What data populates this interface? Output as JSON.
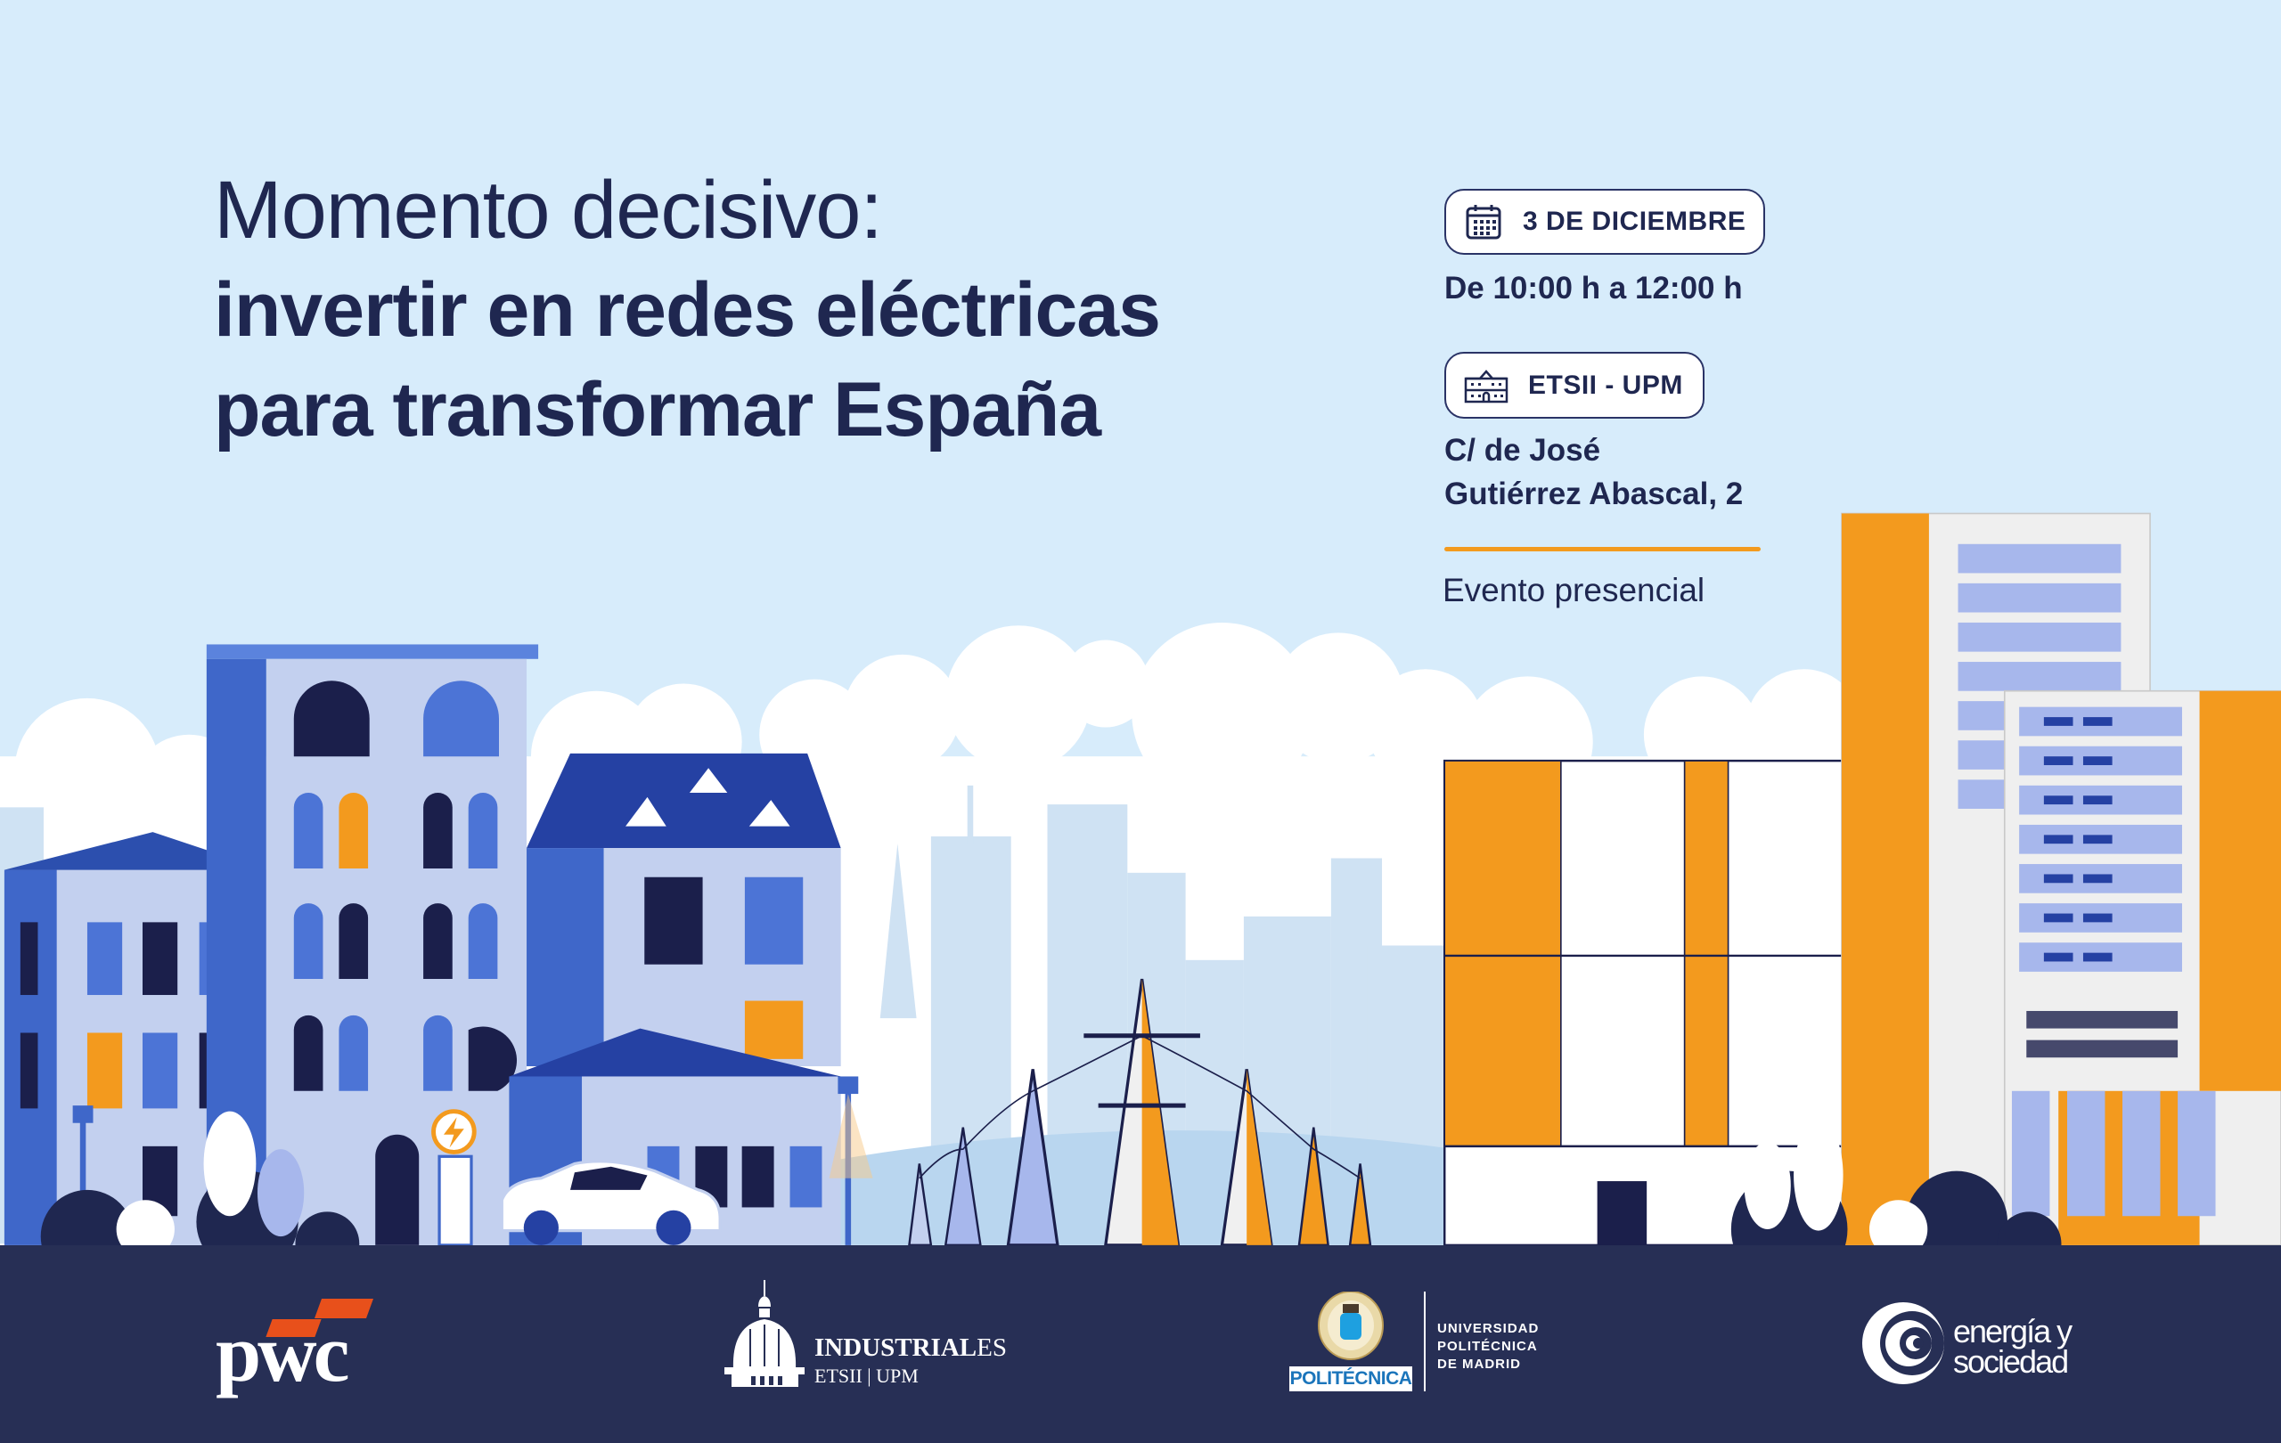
{
  "headline": {
    "line1": "Momento decisivo:",
    "line2": "invertir en redes eléctricas",
    "line3": "para transformar España"
  },
  "event": {
    "date_icon": "calendar-icon",
    "date": "3 DE DICIEMBRE",
    "time": "De 10:00 h a 12:00 h",
    "venue_icon": "building-icon",
    "venue": "ETSII - UPM",
    "address_line1": "C/ de José",
    "address_line2": "Gutiérrez Abascal, 2",
    "mode": "Evento presencial"
  },
  "footer": {
    "logos": {
      "pwc": "pwc",
      "industriales_name_bold": "INDUSTRIAL",
      "industriales_name_light": "ES",
      "industriales_sub": "ETSII | UPM",
      "upm_badge": "POLITÉCNICA",
      "upm_line1": "UNIVERSIDAD",
      "upm_line2": "POLITÉCNICA",
      "upm_line3": "DE MADRID",
      "eys_line1": "energía y",
      "eys_line2": "sociedad"
    }
  },
  "colors": {
    "sky": "#d7ecfb",
    "navy": "#272f55",
    "text": "#1f2750",
    "accent_orange": "#f39a1e",
    "building_blue": "#3f67c9",
    "building_light": "#c3d0ef",
    "pwc_orange": "#e8501b"
  }
}
